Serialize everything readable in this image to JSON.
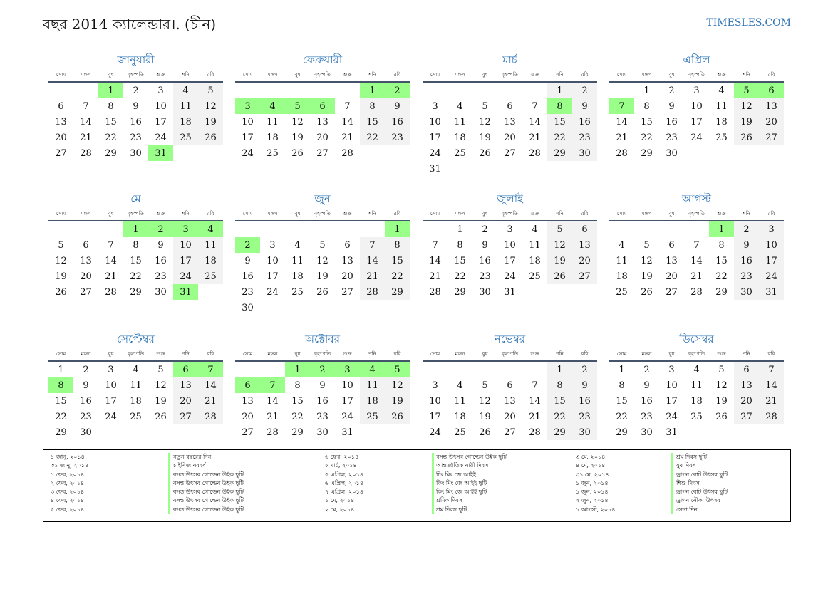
{
  "title": "বছর 2014 ক্যালেন্ডার।. (চীন)",
  "site": "TIMESLES.COM",
  "weekdays": [
    "সোম",
    "মঙ্গল",
    "বুধ",
    "বৃহস্পতি",
    "শুক্র",
    "শনি",
    "রবি"
  ],
  "months": [
    {
      "name": "জানুয়ারী",
      "start": 2,
      "days": 31,
      "holidays": [
        1,
        31
      ]
    },
    {
      "name": "ফেব্রুয়ারী",
      "start": 5,
      "days": 28,
      "holidays": [
        1,
        2,
        3,
        4,
        5,
        6
      ]
    },
    {
      "name": "মার্চ",
      "start": 5,
      "days": 31,
      "holidays": [
        8
      ]
    },
    {
      "name": "এপ্রিল",
      "start": 1,
      "days": 30,
      "holidays": [
        5,
        6,
        7
      ]
    },
    {
      "name": "মে",
      "start": 3,
      "days": 31,
      "holidays": [
        1,
        2,
        3,
        4,
        31
      ]
    },
    {
      "name": "জুন",
      "start": 6,
      "days": 30,
      "holidays": [
        1,
        2
      ]
    },
    {
      "name": "জুলাই",
      "start": 1,
      "days": 31,
      "holidays": []
    },
    {
      "name": "আগস্ট",
      "start": 4,
      "days": 31,
      "holidays": [
        1
      ]
    },
    {
      "name": "সেপ্টেম্বর",
      "start": 0,
      "days": 30,
      "holidays": [
        6,
        7,
        8
      ]
    },
    {
      "name": "অক্টোবর",
      "start": 2,
      "days": 31,
      "holidays": [
        1,
        2,
        3,
        4,
        5,
        6,
        7
      ]
    },
    {
      "name": "নভেম্বর",
      "start": 5,
      "days": 30,
      "holidays": []
    },
    {
      "name": "ডিসেম্বর",
      "start": 0,
      "days": 31,
      "holidays": []
    }
  ],
  "legend": [
    {
      "dates": [
        "১ জানু, ২০১৪",
        "৩১ জানু, ২০১৪",
        "১ ফেব, ২০১৪",
        "২ ফেব, ২০১৪",
        "৩ ফেব, ২০১৪",
        "৪ ফেব, ২০১৪",
        "৫ ফেব, ২০১৪"
      ],
      "names": [
        "নতুন বছরের দিন",
        "চাইনিজ নববর্ষ",
        "বসন্ত উৎসব গোল্ডেন উইক ছুটি",
        "বসন্ত উৎসব গোল্ডেন উইক ছুটি",
        "বসন্ত উৎসব গোল্ডেন উইক ছুটি",
        "বসন্ত উৎসব গোল্ডেন উইক ছুটি",
        "বসন্ত উৎসব গোল্ডেন উইক ছুটি"
      ]
    },
    {
      "dates": [
        "৬ ফেব, ২০১৪",
        "৮ মার্চ, ২০১৪",
        "৫ এপ্রিল, ২০১৪",
        "৬ এপ্রিল, ২০১৪",
        "৭ এপ্রিল, ২০১৪",
        "১ মে, ২০১৪",
        "২ মে, ২০১৪"
      ],
      "names": [
        "বসন্ত উৎসব গোল্ডেন উইক ছুটি",
        "আন্তর্জাতিক নারী দিবস",
        "চিং মিং জে আইই",
        "কিং মিং জে আইই ছুটি",
        "কিং মিং জে আইই ছুটি",
        "শ্রমিক দিবস",
        "শ্রম দিবস ছুটি"
      ]
    },
    {
      "dates": [
        "৩ মে, ২০১৪",
        "৪ মে, ২০১৪",
        "৩১ মে, ২০১৪",
        "১ জুন, ২০১৪",
        "১ জুন, ২০১৪",
        "২ জুন, ২০১৪",
        "১ আগস্ট, ২০১৪"
      ],
      "names": [
        "শ্রম দিবস ছুটি",
        "যুব দিবস",
        "ড্রাগন বোট উৎসব ছুটি",
        "শিশু দিবস",
        "ড্রাগন বোট উৎসব ছুটি",
        "ড্রাগন নৌকা উৎসব",
        "সেনা দিন"
      ]
    }
  ]
}
